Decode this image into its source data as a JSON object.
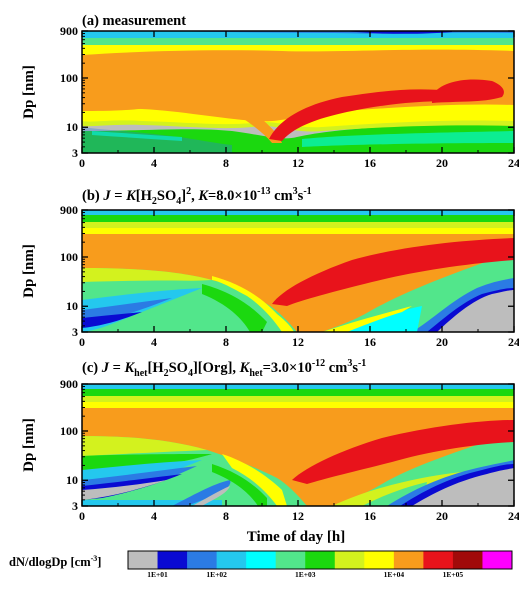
{
  "chart_data": [
    {
      "type": "heatmap",
      "title": "(a) measurement",
      "ylabel": "Dp [nm]",
      "xlabel": "",
      "ylog": true,
      "xlim": [
        0,
        24
      ],
      "ylim": [
        3,
        900
      ],
      "xticks": [
        "0",
        "4",
        "8",
        "12",
        "16",
        "20",
        "24"
      ],
      "yticks": [
        "3",
        "10",
        "100",
        "900"
      ],
      "bands": [
        {
          "level": "1E+04 to 3E+04",
          "color": "#f89c1c",
          "d_low": [
            20,
            22,
            25,
            30,
            32,
            30,
            30,
            35,
            40,
            45,
            50,
            50,
            45
          ],
          "d_high": [
            250,
            280,
            300,
            300,
            280,
            260,
            250,
            260,
            270,
            280,
            270,
            260,
            260
          ]
        },
        {
          "level": "3E+04 to 1E+05",
          "color": "#e8131b",
          "x": [
            10.3,
            12,
            14,
            16,
            18,
            18.5
          ],
          "d_low": [
            6,
            10,
            14,
            18,
            25,
            28
          ],
          "d_high": [
            15,
            22,
            30,
            38,
            45,
            48
          ]
        },
        {
          "level": "3E+04 to 1E+05",
          "color": "#e8131b",
          "x": [
            18.8,
            20,
            21.5
          ],
          "d_low": [
            30,
            28,
            40
          ],
          "d_high": [
            70,
            90,
            80
          ]
        }
      ]
    },
    {
      "type": "heatmap",
      "title_parts": [
        "(b) ",
        "J",
        " = ",
        "K",
        "[H",
        "2",
        "SO",
        "4",
        "]",
        "2",
        ", ",
        "K",
        "=8.0×10",
        "-13",
        " cm",
        "3",
        "s",
        "-1"
      ],
      "ylabel": "Dp [nm]",
      "xlabel": "",
      "ylog": true,
      "xlim": [
        0,
        24
      ],
      "ylim": [
        3,
        900
      ],
      "xticks": [
        "0",
        "4",
        "8",
        "12",
        "16",
        "20",
        "24"
      ],
      "yticks": [
        "3",
        "10",
        "100",
        "900"
      ],
      "bands": [
        {
          "level": "3E+04 to 1E+05",
          "color": "#e8131b",
          "x": [
            11.5,
            13,
            15,
            17,
            19,
            21,
            23,
            24
          ],
          "d_low": [
            8,
            14,
            22,
            35,
            55,
            80,
            110,
            120
          ],
          "d_high": [
            18,
            30,
            55,
            90,
            140,
            190,
            230,
            240
          ]
        }
      ]
    },
    {
      "type": "heatmap",
      "title_parts": [
        "(c) ",
        "J",
        " = ",
        "K",
        "het",
        "[H",
        "2",
        "SO",
        "4",
        "][Org], ",
        "K",
        "het",
        "=3.0×10",
        "-12",
        " cm",
        "3",
        "s",
        "-1"
      ],
      "ylabel": "Dp [nm]",
      "xlabel": "Time of day [h]",
      "ylog": true,
      "xlim": [
        0,
        24
      ],
      "ylim": [
        3,
        900
      ],
      "xticks": [
        "0",
        "4",
        "8",
        "12",
        "16",
        "20",
        "24"
      ],
      "yticks": [
        "3",
        "10",
        "100",
        "900"
      ],
      "bands": [
        {
          "level": "3E+04 to 1E+05",
          "color": "#e8131b",
          "x": [
            12.5,
            14,
            16,
            18,
            20,
            22,
            24
          ],
          "d_low": [
            9,
            15,
            26,
            40,
            60,
            85,
            110
          ],
          "d_high": [
            20,
            35,
            65,
            110,
            160,
            200,
            220
          ]
        }
      ]
    }
  ],
  "colorbar": {
    "label_parts": [
      "dN/dlogDp [cm",
      "-3",
      "]"
    ],
    "colors": [
      "#bdbdbd",
      "#0a0ad2",
      "#2b7be4",
      "#24c8ee",
      "#00ffff",
      "#52e68b",
      "#1bd80f",
      "#d3f21e",
      "#ffff00",
      "#f89c1c",
      "#e8131b",
      "#a10a0a",
      "#ff00ff"
    ],
    "tick_labels": [
      "1E+01",
      "1E+02",
      "1E+03",
      "1E+04",
      "1E+05"
    ]
  }
}
